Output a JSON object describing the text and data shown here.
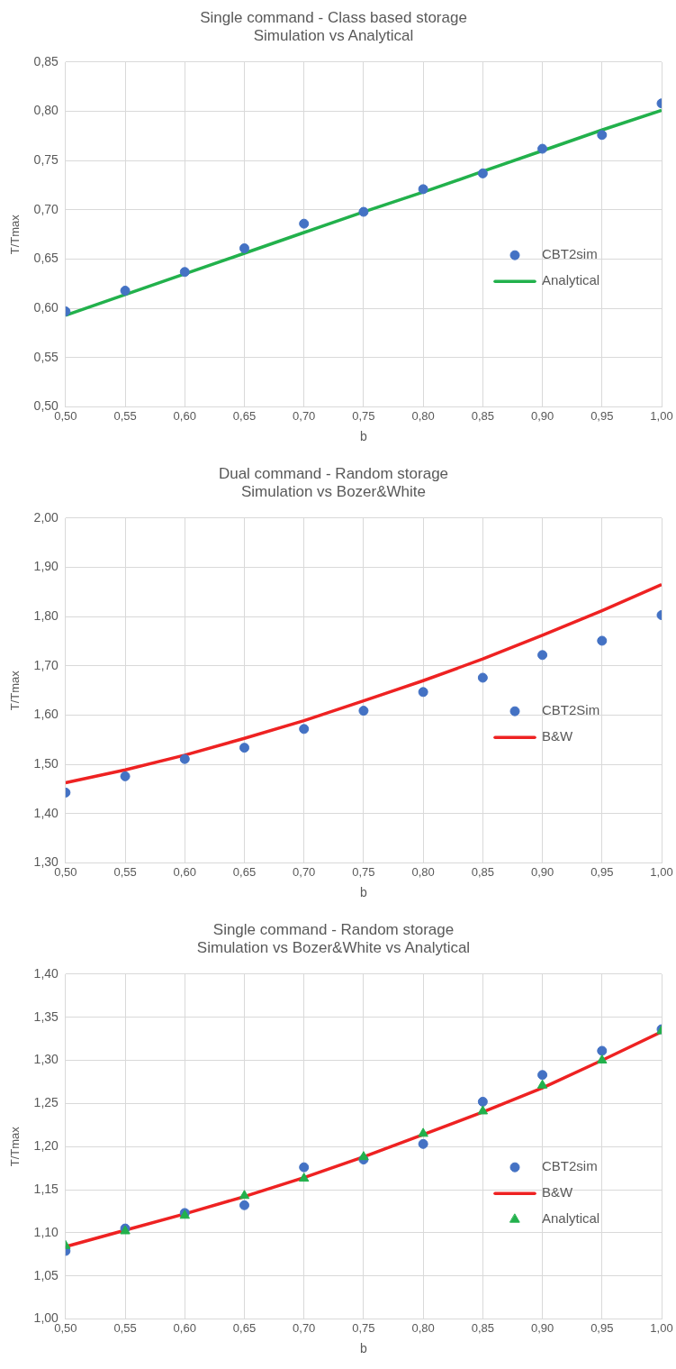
{
  "chart_data": [
    {
      "type": "scatter",
      "title": "Single command - Class based storage",
      "subtitle": "Simulation vs Analytical",
      "xlabel": "b",
      "ylabel": "T/Tmax",
      "x": [
        0.5,
        0.55,
        0.6,
        0.65,
        0.7,
        0.75,
        0.8,
        0.85,
        0.9,
        0.95,
        1.0
      ],
      "series": [
        {
          "name": "CBT2sim",
          "type": "scatter",
          "marker": "circle",
          "color": "#4472c4",
          "values": [
            0.597,
            0.618,
            0.637,
            0.661,
            0.686,
            0.698,
            0.721,
            0.737,
            0.762,
            0.776,
            0.808
          ]
        },
        {
          "name": "Analytical",
          "type": "line",
          "marker": "none",
          "color": "#22b14c",
          "values": [
            0.593,
            0.614,
            0.635,
            0.656,
            0.677,
            0.698,
            0.718,
            0.739,
            0.76,
            0.781,
            0.801
          ]
        }
      ],
      "xlim": [
        0.5,
        1.0
      ],
      "xticks": [
        {
          "value": 0.5,
          "label": "0,50"
        },
        {
          "value": 0.55,
          "label": "0,55"
        },
        {
          "value": 0.6,
          "label": "0,60"
        },
        {
          "value": 0.65,
          "label": "0,65"
        },
        {
          "value": 0.7,
          "label": "0,70"
        },
        {
          "value": 0.75,
          "label": "0,75"
        },
        {
          "value": 0.8,
          "label": "0,80"
        },
        {
          "value": 0.85,
          "label": "0,85"
        },
        {
          "value": 0.9,
          "label": "0,90"
        },
        {
          "value": 0.95,
          "label": "0,95"
        },
        {
          "value": 1.0,
          "label": "1,00"
        }
      ],
      "ylim": [
        0.5,
        0.85
      ],
      "yticks": [
        {
          "value": 0.5,
          "label": "0,50"
        },
        {
          "value": 0.55,
          "label": "0,55"
        },
        {
          "value": 0.6,
          "label": "0,60"
        },
        {
          "value": 0.65,
          "label": "0,65"
        },
        {
          "value": 0.7,
          "label": "0,70"
        },
        {
          "value": 0.75,
          "label": "0,75"
        },
        {
          "value": 0.8,
          "label": "0,80"
        },
        {
          "value": 0.85,
          "label": "0,85"
        }
      ],
      "grid": true,
      "legend": "right"
    },
    {
      "type": "scatter",
      "title": "Dual command - Random storage",
      "subtitle": "Simulation vs Bozer&White",
      "xlabel": "b",
      "ylabel": "T/Tmax",
      "x": [
        0.5,
        0.55,
        0.6,
        0.65,
        0.7,
        0.75,
        0.8,
        0.85,
        0.9,
        0.95,
        1.0
      ],
      "series": [
        {
          "name": "CBT2Sim",
          "type": "scatter",
          "marker": "circle",
          "color": "#4472c4",
          "values": [
            1.443,
            1.476,
            1.511,
            1.534,
            1.572,
            1.609,
            1.647,
            1.676,
            1.722,
            1.751,
            1.803
          ]
        },
        {
          "name": "B&W",
          "type": "line",
          "marker": "none",
          "color": "#ee2222",
          "values": [
            1.463,
            1.489,
            1.519,
            1.553,
            1.589,
            1.629,
            1.67,
            1.714,
            1.762,
            1.812,
            1.865
          ]
        }
      ],
      "xlim": [
        0.5,
        1.0
      ],
      "xticks": [
        {
          "value": 0.5,
          "label": "0,50"
        },
        {
          "value": 0.55,
          "label": "0,55"
        },
        {
          "value": 0.6,
          "label": "0,60"
        },
        {
          "value": 0.65,
          "label": "0,65"
        },
        {
          "value": 0.7,
          "label": "0,70"
        },
        {
          "value": 0.75,
          "label": "0,75"
        },
        {
          "value": 0.8,
          "label": "0,80"
        },
        {
          "value": 0.85,
          "label": "0,85"
        },
        {
          "value": 0.9,
          "label": "0,90"
        },
        {
          "value": 0.95,
          "label": "0,95"
        },
        {
          "value": 1.0,
          "label": "1,00"
        }
      ],
      "ylim": [
        1.3,
        2.0
      ],
      "yticks": [
        {
          "value": 1.3,
          "label": "1,30"
        },
        {
          "value": 1.4,
          "label": "1,40"
        },
        {
          "value": 1.5,
          "label": "1,50"
        },
        {
          "value": 1.6,
          "label": "1,60"
        },
        {
          "value": 1.7,
          "label": "1,70"
        },
        {
          "value": 1.8,
          "label": "1,80"
        },
        {
          "value": 1.9,
          "label": "1,90"
        },
        {
          "value": 2.0,
          "label": "2,00"
        }
      ],
      "grid": true,
      "legend": "right"
    },
    {
      "type": "scatter",
      "title": "Single command - Random storage",
      "subtitle": "Simulation vs Bozer&White vs Analytical",
      "xlabel": "b",
      "ylabel": "T/Tmax",
      "x": [
        0.5,
        0.55,
        0.6,
        0.65,
        0.7,
        0.75,
        0.8,
        0.85,
        0.9,
        0.95,
        1.0
      ],
      "series": [
        {
          "name": "CBT2sim",
          "type": "scatter",
          "marker": "circle",
          "color": "#4472c4",
          "values": [
            1.079,
            1.105,
            1.123,
            1.132,
            1.176,
            1.185,
            1.203,
            1.252,
            1.283,
            1.311,
            1.336
          ]
        },
        {
          "name": "B&W",
          "type": "line",
          "marker": "none",
          "color": "#ee2222",
          "values": [
            1.084,
            1.103,
            1.122,
            1.142,
            1.164,
            1.188,
            1.214,
            1.24,
            1.268,
            1.3,
            1.333
          ]
        },
        {
          "name": "Analytical",
          "type": "scatter",
          "marker": "triangle",
          "color": "#22b14c",
          "values": [
            1.085,
            1.102,
            1.12,
            1.143,
            1.163,
            1.188,
            1.215,
            1.241,
            1.271,
            1.3,
            1.334
          ]
        }
      ],
      "xlim": [
        0.5,
        1.0
      ],
      "xticks": [
        {
          "value": 0.5,
          "label": "0,50"
        },
        {
          "value": 0.55,
          "label": "0,55"
        },
        {
          "value": 0.6,
          "label": "0,60"
        },
        {
          "value": 0.65,
          "label": "0,65"
        },
        {
          "value": 0.7,
          "label": "0,70"
        },
        {
          "value": 0.75,
          "label": "0,75"
        },
        {
          "value": 0.8,
          "label": "0,80"
        },
        {
          "value": 0.85,
          "label": "0,85"
        },
        {
          "value": 0.9,
          "label": "0,90"
        },
        {
          "value": 0.95,
          "label": "0,95"
        },
        {
          "value": 1.0,
          "label": "1,00"
        }
      ],
      "ylim": [
        1.0,
        1.4
      ],
      "yticks": [
        {
          "value": 1.0,
          "label": "1,00"
        },
        {
          "value": 1.05,
          "label": "1,05"
        },
        {
          "value": 1.1,
          "label": "1,10"
        },
        {
          "value": 1.15,
          "label": "1,15"
        },
        {
          "value": 1.2,
          "label": "1,20"
        },
        {
          "value": 1.25,
          "label": "1,25"
        },
        {
          "value": 1.3,
          "label": "1,30"
        },
        {
          "value": 1.35,
          "label": "1,35"
        },
        {
          "value": 1.4,
          "label": "1,40"
        }
      ],
      "grid": true,
      "legend": "right"
    }
  ]
}
